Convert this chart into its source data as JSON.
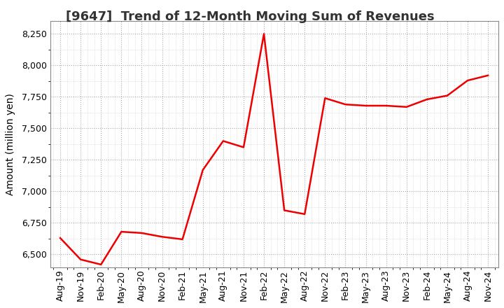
{
  "title": "[9647]  Trend of 12-Month Moving Sum of Revenues",
  "ylabel": "Amount (million yen)",
  "background_color": "#ffffff",
  "plot_area_color": "#ffffff",
  "line_color": "#ee0000",
  "grid_color": "#aaaaaa",
  "dates": [
    "Aug-19",
    "Nov-19",
    "Feb-20",
    "May-20",
    "Aug-20",
    "Nov-20",
    "Feb-21",
    "May-21",
    "Aug-21",
    "Nov-21",
    "Feb-22",
    "May-22",
    "Aug-22",
    "Nov-22",
    "Feb-23",
    "May-23",
    "Aug-23",
    "Nov-23",
    "Feb-24",
    "May-24",
    "Aug-24",
    "Nov-24"
  ],
  "values": [
    6630,
    6460,
    6420,
    6680,
    6670,
    6640,
    6620,
    7170,
    7400,
    7350,
    8250,
    6850,
    6820,
    7740,
    7690,
    7680,
    7680,
    7670,
    7730,
    7760,
    7880,
    7920
  ],
  "ylim": [
    6400,
    8350
  ],
  "yticks": [
    6500,
    6750,
    7000,
    7250,
    7500,
    7750,
    8000,
    8250
  ],
  "title_fontsize": 13,
  "axis_fontsize": 10,
  "tick_fontsize": 9
}
